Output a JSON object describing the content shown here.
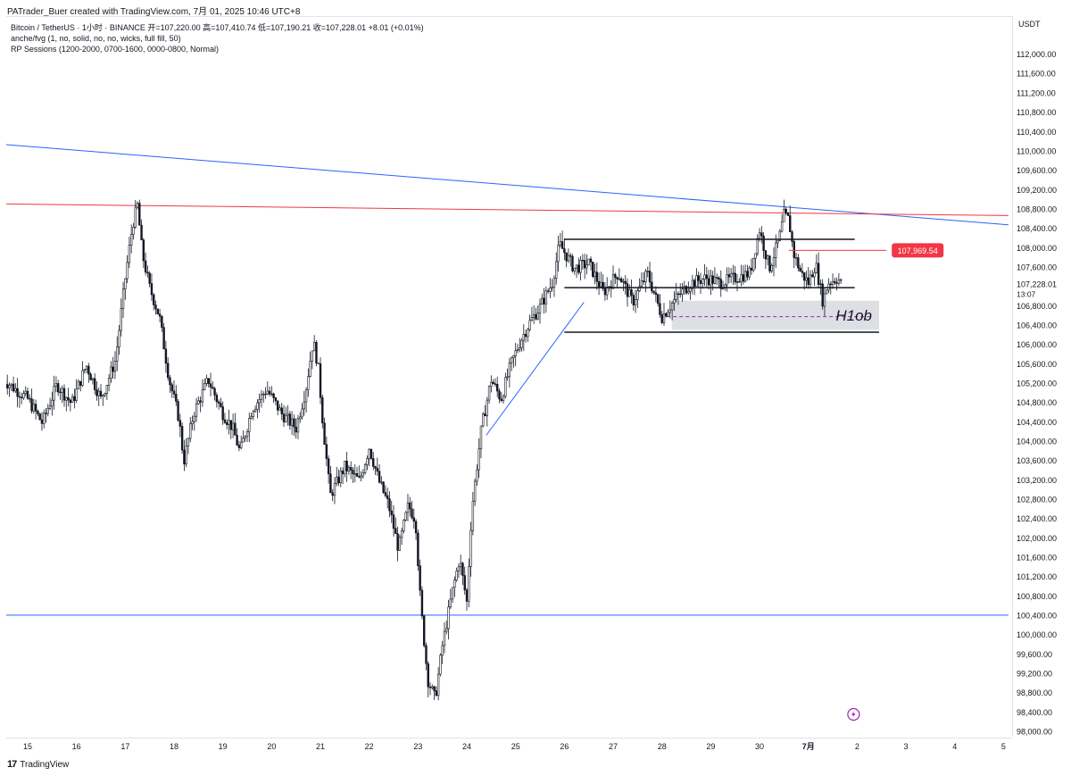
{
  "header": {
    "attribution": "PATrader_Buer created with TradingView.com, 7月 01, 2025 10:46 UTC+8",
    "legend_lines": [
      "Bitcoin / TetherUS · 1小时 · BINANCE  开=107,220.00  高=107,410.74  低=107,190.21  收=107,228.01  +8.01 (+0.01%)",
      "anche/fvg (1, no, solid, no, no, wicks, full fill, 50)",
      "RP Sessions (1200-2000, 0700-1600, 0000-0800, Normal)"
    ]
  },
  "price_axis": {
    "currency": "USDT",
    "current_price_label": "107,228.01",
    "countdown": "13:07",
    "red_price_label": "107,969.54"
  },
  "annotation": {
    "h1ob_label": "H1ob"
  },
  "footer": {
    "brand": "TradingView"
  },
  "colors": {
    "candle": "#131722",
    "red_line": "#f23645",
    "blue_line": "#2962ff",
    "zone": "#d1d4dc",
    "purple": "#9c27b0"
  },
  "chart_data": {
    "type": "candlestick",
    "symbol": "Bitcoin / TetherUS",
    "interval": "1小时",
    "exchange": "BINANCE",
    "ylim": [
      97900,
      112300
    ],
    "y_ticks": [
      98000,
      98400,
      98800,
      99200,
      99600,
      100000,
      100400,
      100800,
      101200,
      101600,
      102000,
      102400,
      102800,
      103200,
      103600,
      104000,
      104400,
      104800,
      105200,
      105600,
      106000,
      106400,
      106800,
      107200,
      107600,
      108000,
      108400,
      108800,
      109200,
      109600,
      110000,
      110400,
      110800,
      111200,
      111600,
      112000
    ],
    "x_tick_labels": [
      "15",
      "16",
      "17",
      "18",
      "19",
      "20",
      "21",
      "22",
      "23",
      "24",
      "25",
      "26",
      "27",
      "28",
      "29",
      "30",
      "7月",
      "2",
      "3",
      "4",
      "5"
    ],
    "price_path": [
      [
        14.5,
        105300
      ],
      [
        15.0,
        104900
      ],
      [
        15.3,
        104400
      ],
      [
        15.6,
        105200
      ],
      [
        15.9,
        104800
      ],
      [
        16.2,
        105600
      ],
      [
        16.5,
        104900
      ],
      [
        16.8,
        105700
      ],
      [
        17.0,
        107400
      ],
      [
        17.15,
        108500
      ],
      [
        17.25,
        108900
      ],
      [
        17.35,
        107900
      ],
      [
        17.5,
        107200
      ],
      [
        17.7,
        106600
      ],
      [
        17.9,
        105300
      ],
      [
        18.1,
        104500
      ],
      [
        18.2,
        103600
      ],
      [
        18.4,
        104600
      ],
      [
        18.7,
        105300
      ],
      [
        19.0,
        104600
      ],
      [
        19.2,
        104300
      ],
      [
        19.35,
        103800
      ],
      [
        19.6,
        104700
      ],
      [
        19.9,
        105100
      ],
      [
        20.2,
        104600
      ],
      [
        20.5,
        104300
      ],
      [
        20.7,
        105100
      ],
      [
        20.85,
        106100
      ],
      [
        20.95,
        105600
      ],
      [
        21.05,
        104400
      ],
      [
        21.2,
        102900
      ],
      [
        21.5,
        103500
      ],
      [
        21.8,
        103200
      ],
      [
        22.0,
        103900
      ],
      [
        22.2,
        103200
      ],
      [
        22.4,
        102700
      ],
      [
        22.6,
        101800
      ],
      [
        22.8,
        102700
      ],
      [
        22.95,
        102400
      ],
      [
        23.05,
        100700
      ],
      [
        23.2,
        99100
      ],
      [
        23.35,
        98700
      ],
      [
        23.5,
        99800
      ],
      [
        23.7,
        100900
      ],
      [
        23.85,
        101600
      ],
      [
        24.0,
        100700
      ],
      [
        24.1,
        102600
      ],
      [
        24.3,
        104300
      ],
      [
        24.5,
        105300
      ],
      [
        24.7,
        104900
      ],
      [
        24.9,
        105600
      ],
      [
        25.1,
        106100
      ],
      [
        25.3,
        106500
      ],
      [
        25.5,
        106800
      ],
      [
        25.75,
        107300
      ],
      [
        25.9,
        108100
      ],
      [
        26.2,
        107600
      ],
      [
        26.5,
        107700
      ],
      [
        26.8,
        107100
      ],
      [
        27.1,
        107500
      ],
      [
        27.4,
        106900
      ],
      [
        27.7,
        107500
      ],
      [
        28.0,
        106600
      ],
      [
        28.3,
        107000
      ],
      [
        28.6,
        107300
      ],
      [
        28.9,
        107400
      ],
      [
        29.2,
        107300
      ],
      [
        29.5,
        107400
      ],
      [
        29.8,
        107500
      ],
      [
        30.0,
        108400
      ],
      [
        30.2,
        107600
      ],
      [
        30.4,
        108200
      ],
      [
        30.5,
        108700
      ],
      [
        30.6,
        108600
      ],
      [
        30.7,
        107900
      ],
      [
        30.85,
        107500
      ],
      [
        31.0,
        107300
      ],
      [
        31.15,
        107700
      ],
      [
        31.3,
        106900
      ],
      [
        31.4,
        107300
      ],
      [
        31.6,
        107400
      ],
      [
        31.7,
        107228
      ]
    ],
    "horizontal_lines": [
      {
        "price": 108200,
        "from": 26.0,
        "to": 31.95,
        "color": "#131722"
      },
      {
        "price": 107200,
        "from": 26.0,
        "to": 31.95,
        "color": "#131722"
      },
      {
        "price": 106280,
        "from": 26.0,
        "to": 32.45,
        "color": "#131722"
      },
      {
        "price": 107969.54,
        "from": 30.6,
        "to": 32.6,
        "color": "#f23645"
      },
      {
        "price": 106600,
        "from": 28.1,
        "to": 32.3,
        "color": "#9c27b0",
        "dashed": true
      }
    ],
    "zone": {
      "from_x": 28.2,
      "to_x": 32.45,
      "y_low": 106330,
      "y_high": 106930
    },
    "trend_lines": [
      {
        "x1": 14.5,
        "y1": 110160,
        "x2": 35.1,
        "y2": 108500,
        "color": "#2962ff"
      },
      {
        "x1": 14.5,
        "y1": 108930,
        "x2": 35.1,
        "y2": 108690,
        "color": "#f23645"
      },
      {
        "x1": 14.5,
        "y1": 100430,
        "x2": 35.1,
        "y2": 100430,
        "color": "#2962ff"
      },
      {
        "x1": 24.4,
        "y1": 104150,
        "x2": 26.4,
        "y2": 106900,
        "color": "#2962ff"
      }
    ]
  }
}
